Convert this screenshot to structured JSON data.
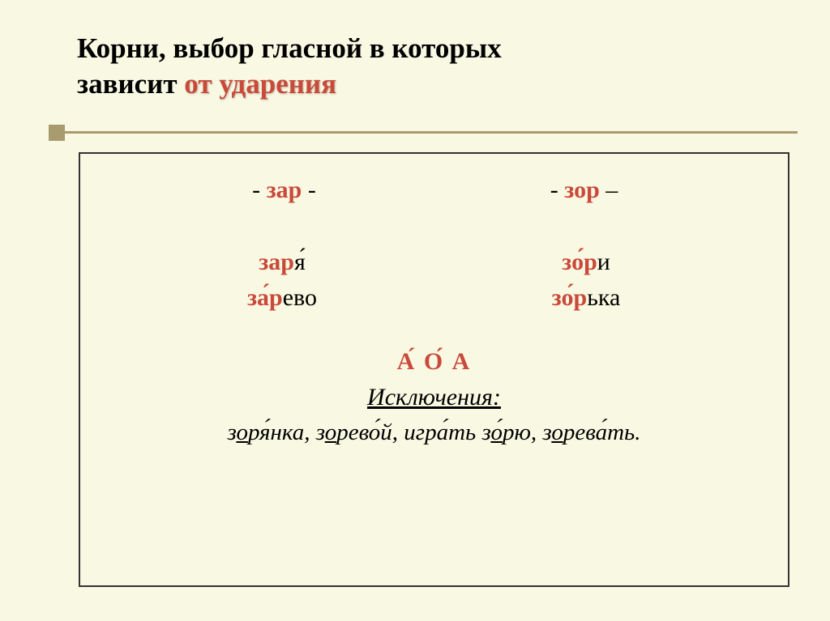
{
  "title": {
    "line1_plain": "Корни, выбор гласной в которых",
    "line2_plain": "зависит ",
    "line2_emphasis": "от ударения"
  },
  "roots": {
    "left_prefix": "- ",
    "left": "зар",
    "left_suffix": " -",
    "right_prefix": "- ",
    "right": "зор",
    "right_suffix": " –"
  },
  "words": {
    "row1": {
      "left": {
        "root": "зар",
        "rest": "я́"
      },
      "right": {
        "pre": "з",
        "vowel": "о́",
        "post": "р",
        "rest": "и"
      }
    },
    "row2": {
      "left": {
        "pre": "з",
        "vowel": "а́",
        "post": "р",
        "rest": "ево"
      },
      "right": {
        "pre": "з",
        "vowel": "о́",
        "post": "р",
        "rest": "ька"
      }
    }
  },
  "rule": {
    "pattern": "А́ О́      А",
    "exceptions_label": "Исключения:",
    "exceptions": {
      "w1": {
        "pre": "з",
        "u": "о",
        "post": "ря́нка, "
      },
      "w2": {
        "pre": "з",
        "u": "о",
        "post": "рево́й, "
      },
      "w3": "игра́ть   ",
      "w4": {
        "pre": "з",
        "u": "о́",
        "post": "рю, "
      },
      "w5": {
        "pre": "з",
        "u": "о",
        "post": "рева́ть."
      }
    }
  },
  "colors": {
    "background": "#f9f9e3",
    "accent_text": "#c94a3a",
    "separator": "#a89b6e",
    "border": "#333333",
    "text": "#000000"
  },
  "typography": {
    "title_fontsize": 35,
    "body_fontsize": 30,
    "font_family": "Georgia, Times New Roman, serif"
  }
}
